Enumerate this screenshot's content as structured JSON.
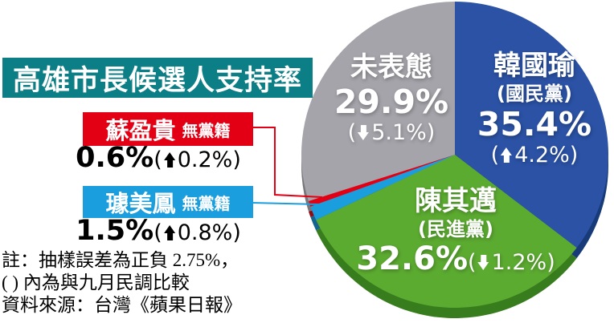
{
  "title": "高雄市長候選人支持率",
  "punct": {
    "open": "(",
    "close": ")"
  },
  "notes": [
    "註：抽樣誤差為正負 2.75%，",
    "( ) 內為與九月民調比較",
    "資料來源：台灣《蘋果日報》"
  ],
  "colors": {
    "title_bg": "#0c7e85",
    "background": "#ffffff",
    "note_text": "#000000",
    "label_text": "#ffffff"
  },
  "chart_data": {
    "type": "pie",
    "title": "高雄市長候選人支持率",
    "start_angle_deg": 0,
    "clockwise": true,
    "legend_position": "on-slice",
    "slices": [
      {
        "key": "han",
        "label": "韓國瑜",
        "party": "國民黨",
        "party_label": "(國民黨)",
        "value": 35.4,
        "value_label": "35.4%",
        "delta_label": "4.2%",
        "delta_dir": "up",
        "color": "#2b52a5",
        "side_color": "#173a78"
      },
      {
        "key": "chen",
        "label": "陳其邁",
        "party": "民進黨",
        "party_label": "(民進黨)",
        "value": 32.6,
        "value_label": "32.6%",
        "delta_label": "1.2%",
        "delta_dir": "down",
        "color": "#5cab31",
        "side_color": "#387d1d"
      },
      {
        "key": "chu",
        "label": "璩美鳳",
        "party": "無黨籍",
        "value": 1.5,
        "value_label": "1.5%",
        "delta_label": "0.8%",
        "delta_dir": "up",
        "color": "#1b9edd",
        "side_color": "#13648e"
      },
      {
        "key": "su",
        "label": "蘇盈貴",
        "party": "無黨籍",
        "value": 0.6,
        "value_label": "0.6%",
        "delta_label": "0.2%",
        "delta_dir": "up",
        "color": "#e30015",
        "side_color": "#8e0b14"
      },
      {
        "key": "undecided",
        "label": "未表態",
        "value": 29.9,
        "value_label": "29.9%",
        "delta_label": "5.1%",
        "delta_dir": "down",
        "color": "#a5a4aa",
        "side_color": "#77767c"
      }
    ]
  }
}
